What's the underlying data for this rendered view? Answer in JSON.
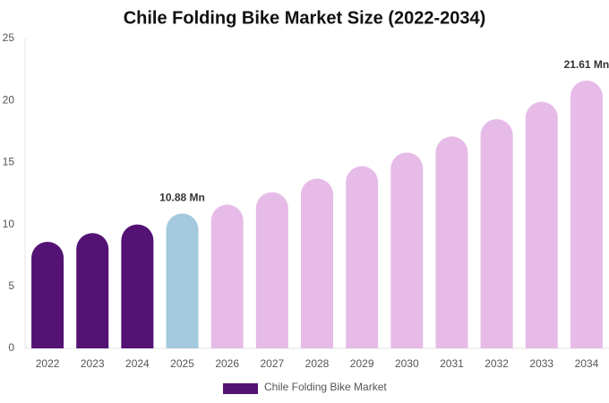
{
  "chart_data": {
    "type": "bar",
    "title": "Chile Folding Bike Market Size (2022-2034)",
    "categories": [
      "2022",
      "2023",
      "2024",
      "2025",
      "2026",
      "2027",
      "2028",
      "2029",
      "2030",
      "2031",
      "2032",
      "2033",
      "2034"
    ],
    "series": [
      {
        "name": "Chile Folding Bike Market",
        "color": "#541275",
        "values": [
          8.6,
          9.3,
          10.0,
          10.88,
          11.6,
          12.6,
          13.7,
          14.7,
          15.8,
          17.1,
          18.5,
          19.9,
          21.61
        ],
        "colors": [
          "#541275",
          "#541275",
          "#541275",
          "#a4c9de",
          "#e6bbe8",
          "#e6bbe8",
          "#e6bbe8",
          "#e6bbe8",
          "#e6bbe8",
          "#e6bbe8",
          "#e6bbe8",
          "#e6bbe8",
          "#e6bbe8"
        ],
        "value_labels": [
          null,
          null,
          null,
          "10.88 Mn",
          null,
          null,
          null,
          null,
          null,
          null,
          null,
          null,
          "21.61 Mn"
        ]
      }
    ],
    "ylim": [
      0,
      25
    ],
    "yticks": [
      0,
      5,
      10,
      15,
      20,
      25
    ],
    "grid": false
  }
}
